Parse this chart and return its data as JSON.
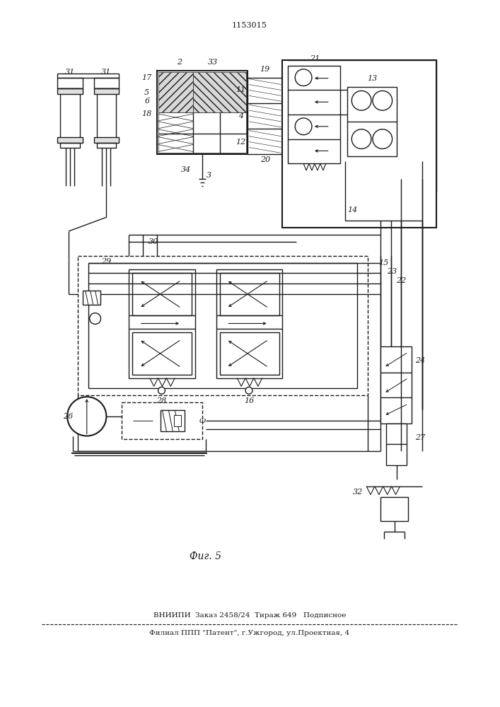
{
  "patent_number": "1153015",
  "figure_label": "Фиг. 5",
  "footer_line1": "ВНИИПИ  Заказ 2458/24  Тираж 649   Подписное",
  "footer_line2": "Филиал ППП \"Патент\", г.Ужгород, ул.Проектная, 4",
  "bg_color": "#ffffff",
  "lc": "#1a1a1a"
}
